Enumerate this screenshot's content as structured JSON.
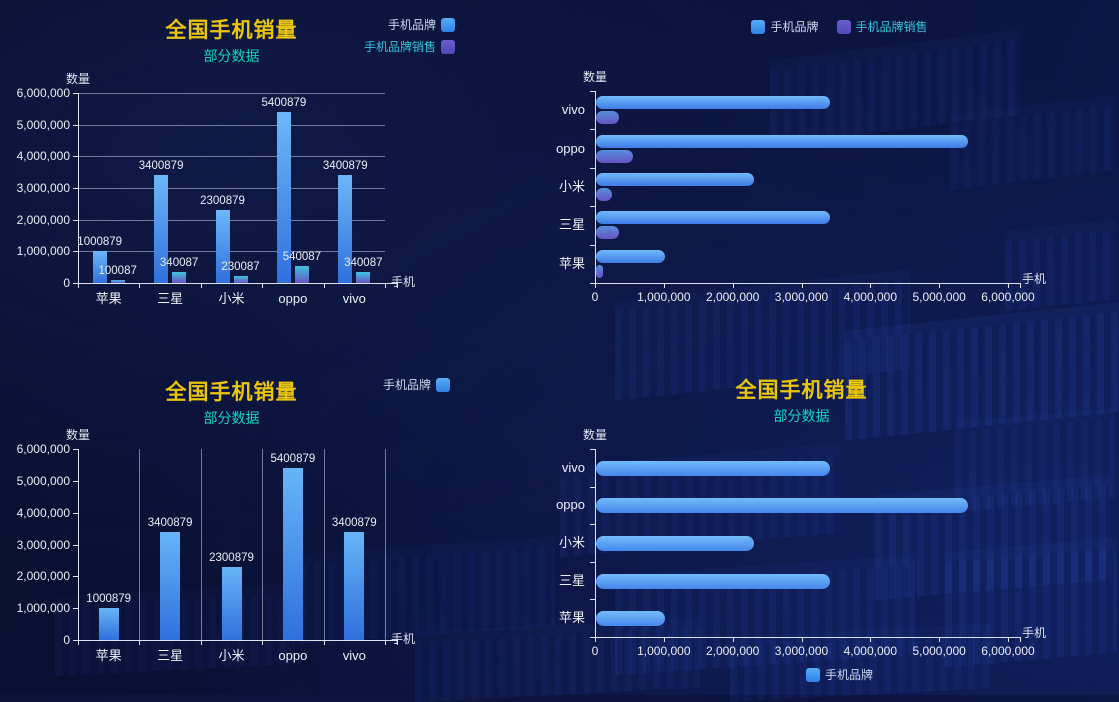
{
  "palette": {
    "title_color": "#e9c50c",
    "subtitle_color": "#12d2c2",
    "axis_text_color": "#e9eef6",
    "axis_line_color": "#dde3ee",
    "grid_line_color": "rgba(196,206,226,0.55)",
    "background_color": "#0a1136",
    "brand_blue": "#3d9ff2",
    "brand_purple": "#5a54c6"
  },
  "chart_data": [
    {
      "type": "bar",
      "orientation": "vertical",
      "position": "top-left",
      "title": "全国手机销量",
      "subtitle": "部分数据",
      "x_axis_name": "手机",
      "y_axis_name": "数量",
      "categories": [
        "苹果",
        "三星",
        "小米",
        "oppo",
        "vivo"
      ],
      "series": [
        {
          "name": "手机品牌",
          "values": [
            1000879,
            3400879,
            2300879,
            5400879,
            3400879
          ],
          "value_labels": [
            "1000879",
            "3400879",
            "2300879",
            "5400879",
            "3400879"
          ],
          "color_top": "#6db7f8",
          "color_bottom": "#3070dd"
        },
        {
          "name": "手机品牌销售",
          "values": [
            100087,
            340087,
            230087,
            540087,
            340087
          ],
          "value_labels": [
            "100087",
            "340087",
            "230087",
            "540087",
            "340087"
          ],
          "color_top": "#3fc3dd",
          "color_bottom": "#6a52c4"
        }
      ],
      "value_axis_max": 6000000,
      "axis_ticks": [
        "0",
        "1,000,000",
        "2,000,000",
        "3,000,000",
        "4,000,000",
        "5,000,000",
        "6,000,000"
      ],
      "grid_lines": "horizontal",
      "show_value_labels": true,
      "legend": {
        "position": "top-right",
        "icon_side": "right",
        "items": [
          {
            "label": "手机品牌",
            "icon_color_top": "#56aef6",
            "icon_color_bottom": "#2e7fe8",
            "label_color": "#c9d8ef"
          },
          {
            "label": "手机品牌销售",
            "icon_color_top": "#6a5fd0",
            "icon_color_bottom": "#4f46b4",
            "label_color": "#33c3da"
          }
        ]
      }
    },
    {
      "type": "bar",
      "orientation": "horizontal",
      "position": "top-right",
      "title": "",
      "subtitle": "",
      "x_axis_name": "手机",
      "y_axis_name": "数量",
      "categories": [
        "vivo",
        "oppo",
        "小米",
        "三星",
        "苹果"
      ],
      "series": [
        {
          "name": "手机品牌",
          "values": [
            3400879,
            5400879,
            2300879,
            3400879,
            1000879
          ],
          "value_labels": [],
          "color_top": "#72baf9",
          "color_bottom": "#3f7ce8"
        },
        {
          "name": "手机品牌销售",
          "values": [
            340087,
            540087,
            230087,
            340087,
            100087
          ],
          "value_labels": [],
          "color_top": "#5590dc",
          "color_bottom": "#6852c2"
        }
      ],
      "value_axis_max": 6000000,
      "axis_ticks": [
        "0",
        "1,000,000",
        "2,000,000",
        "3,000,000",
        "4,000,000",
        "5,000,000",
        "6,000,000"
      ],
      "grid_lines": "none",
      "show_value_labels": false,
      "legend": {
        "position": "top-center",
        "icon_side": "left",
        "items": [
          {
            "label": "手机品牌",
            "icon_color_top": "#56aef6",
            "icon_color_bottom": "#2e7fe8",
            "label_color": "#c9d8ef"
          },
          {
            "label": "手机品牌销售",
            "icon_color_top": "#6a5fd0",
            "icon_color_bottom": "#4f46b4",
            "label_color": "#33c3da"
          }
        ]
      }
    },
    {
      "type": "bar",
      "orientation": "vertical",
      "position": "bottom-left",
      "title": "全国手机销量",
      "subtitle": "部分数据",
      "x_axis_name": "手机",
      "y_axis_name": "数量",
      "categories": [
        "苹果",
        "三星",
        "小米",
        "oppo",
        "vivo"
      ],
      "series": [
        {
          "name": "手机品牌",
          "values": [
            1000879,
            3400879,
            2300879,
            5400879,
            3400879
          ],
          "value_labels": [
            "1000879",
            "3400879",
            "2300879",
            "5400879",
            "3400879"
          ],
          "color_top": "#66b5f7",
          "color_bottom": "#3070dd"
        }
      ],
      "value_axis_max": 6000000,
      "axis_ticks": [
        "0",
        "1,000,000",
        "2,000,000",
        "3,000,000",
        "4,000,000",
        "5,000,000",
        "6,000,000"
      ],
      "grid_lines": "vertical",
      "show_value_labels": true,
      "legend": {
        "position": "top-right",
        "icon_side": "right",
        "items": [
          {
            "label": "手机品牌",
            "icon_color_top": "#56aef6",
            "icon_color_bottom": "#2e7fe8",
            "label_color": "#c9d8ef"
          }
        ]
      }
    },
    {
      "type": "bar",
      "orientation": "horizontal",
      "position": "bottom-right",
      "title": "全国手机销量",
      "subtitle": "部分数据",
      "x_axis_name": "手机",
      "y_axis_name": "数量",
      "categories": [
        "vivo",
        "oppo",
        "小米",
        "三星",
        "苹果"
      ],
      "series": [
        {
          "name": "手机品牌",
          "values": [
            3400879,
            5400879,
            2300879,
            3400879,
            1000879
          ],
          "value_labels": [],
          "color_top": "#74bbf9",
          "color_bottom": "#4486ec"
        }
      ],
      "value_axis_max": 6000000,
      "axis_ticks": [
        "0",
        "1,000,000",
        "2,000,000",
        "3,000,000",
        "4,000,000",
        "5,000,000",
        "6,000,000"
      ],
      "grid_lines": "none",
      "show_value_labels": false,
      "legend": {
        "position": "bottom-center",
        "icon_side": "left",
        "items": [
          {
            "label": "手机品牌",
            "icon_color_top": "#56aef6",
            "icon_color_bottom": "#2e7fe8",
            "label_color": "#c9d8ef"
          }
        ]
      }
    }
  ]
}
